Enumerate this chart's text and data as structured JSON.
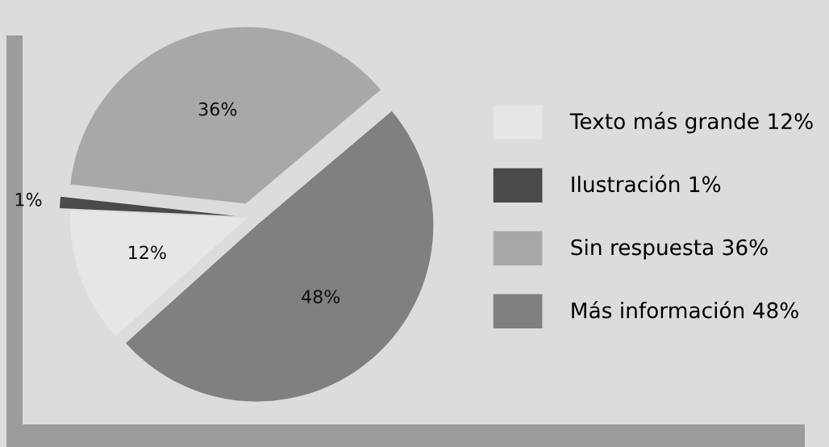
{
  "chart_data": {
    "type": "pie",
    "categories": [
      "Texto más grande 12%",
      "Ilustración 1%",
      "Sin respuesta 36%",
      "Más información 48%"
    ],
    "values": [
      12,
      1,
      36,
      48
    ],
    "colors": [
      "#e6e6e6",
      "#4a4a4a",
      "#a8a8a8",
      "#808080"
    ],
    "value_labels": [
      "12%",
      "1%",
      "36%",
      "48%"
    ],
    "legend": "right"
  }
}
